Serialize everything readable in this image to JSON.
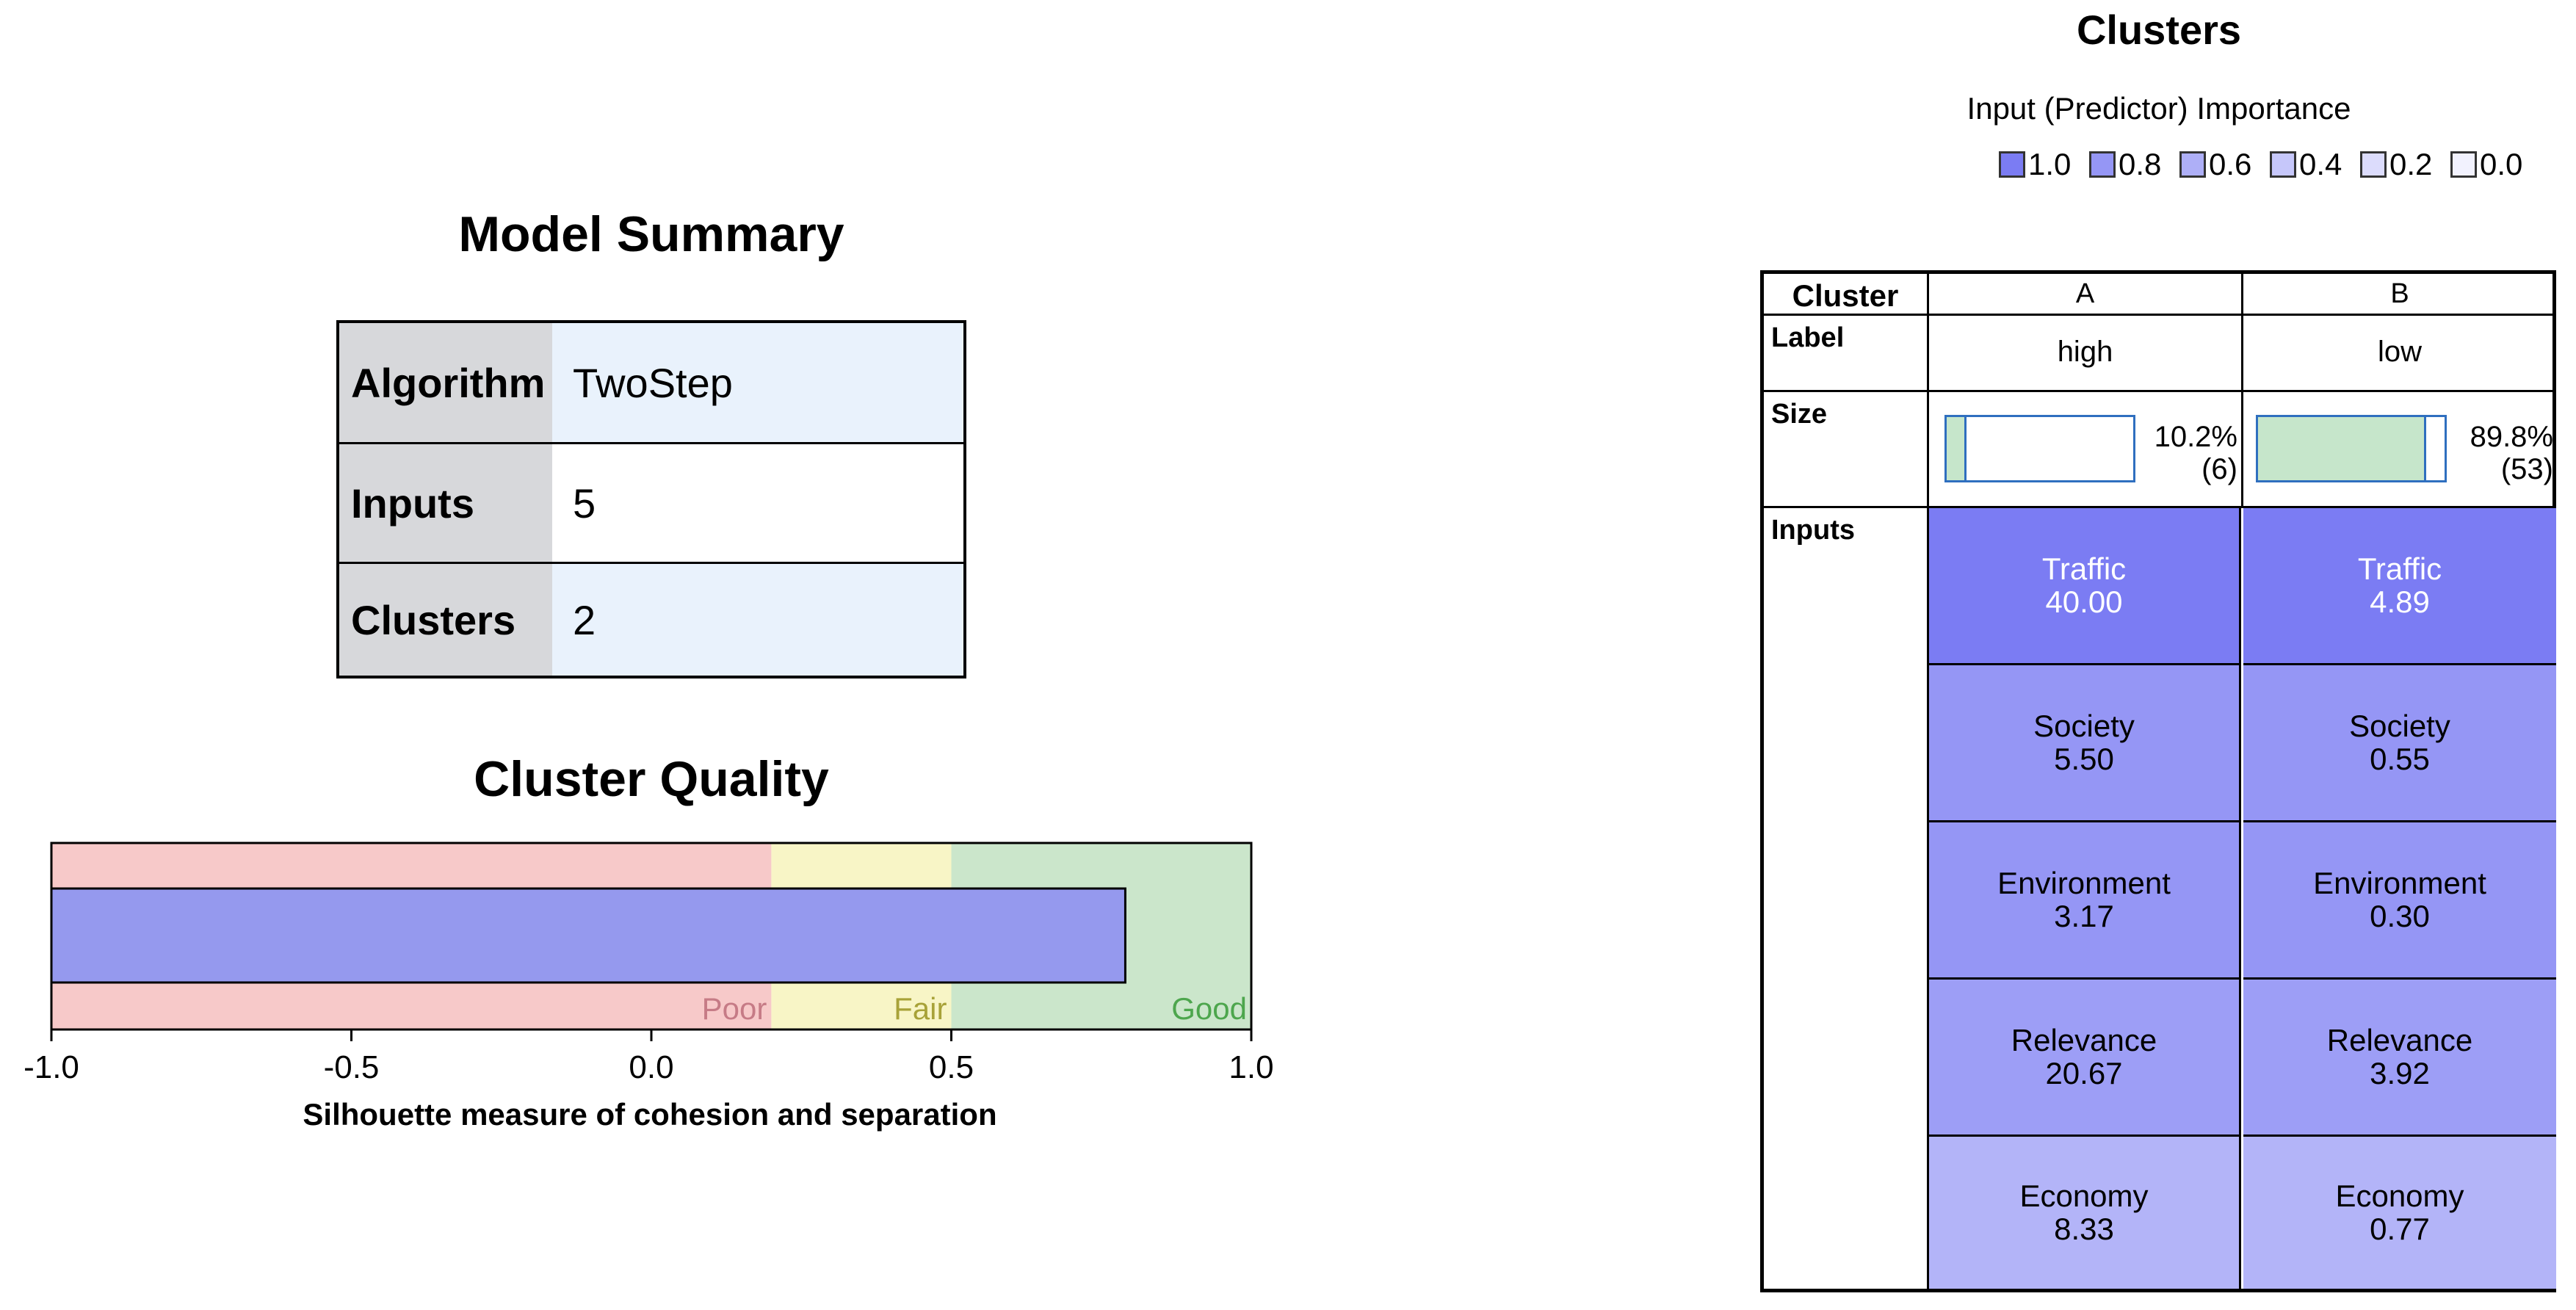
{
  "model_summary": {
    "title": "Model Summary",
    "rows": [
      {
        "label": "Algorithm",
        "value": "TwoStep"
      },
      {
        "label": "Inputs",
        "value": "5"
      },
      {
        "label": "Clusters",
        "value": "2"
      }
    ]
  },
  "cluster_quality": {
    "title": "Cluster Quality",
    "xlabel": "Silhouette measure of cohesion and separation",
    "ticks": [
      "-1.0",
      "-0.5",
      "0.0",
      "0.5",
      "1.0"
    ],
    "zones": [
      {
        "label": "Poor",
        "from": -1.0,
        "to": 0.2,
        "color": "#f7c9c9",
        "text_color": "#c67b86"
      },
      {
        "label": "Fair",
        "from": 0.2,
        "to": 0.5,
        "color": "#f8f5c6",
        "text_color": "#a8a238"
      },
      {
        "label": "Good",
        "from": 0.5,
        "to": 1.0,
        "color": "#cbe6cb",
        "text_color": "#4da64d"
      }
    ],
    "bar_color": "#9599ee"
  },
  "clusters": {
    "title": "Clusters",
    "legend_title": "Input (Predictor) Importance",
    "legend": [
      {
        "label": "1.0",
        "color": "#7b7cf3"
      },
      {
        "label": "0.8",
        "color": "#9596f5"
      },
      {
        "label": "0.6",
        "color": "#aeaff7"
      },
      {
        "label": "0.4",
        "color": "#c6c7fa"
      },
      {
        "label": "0.2",
        "color": "#dcdcfc"
      },
      {
        "label": "0.0",
        "color": "#f2f2fe"
      }
    ],
    "row_labels": {
      "cluster": "Cluster",
      "label": "Label",
      "size": "Size",
      "inputs": "Inputs"
    },
    "columns": [
      {
        "name": "A",
        "label": "high",
        "size_pct": "10.2%",
        "size_n": "(6)",
        "size_fraction": 0.102,
        "inputs": [
          {
            "name": "Traffic",
            "value": "40.00",
            "color": "#7b7cf3",
            "text_color": "#ffffff"
          },
          {
            "name": "Society",
            "value": "5.50",
            "color": "#9596f5",
            "text_color": "#000000"
          },
          {
            "name": "Environment",
            "value": "3.17",
            "color": "#9596f5",
            "text_color": "#000000"
          },
          {
            "name": "Relevance",
            "value": "20.67",
            "color": "#9d9ef6",
            "text_color": "#000000"
          },
          {
            "name": "Economy",
            "value": "8.33",
            "color": "#b3b4f8",
            "text_color": "#000000"
          }
        ]
      },
      {
        "name": "B",
        "label": "low",
        "size_pct": "89.8%",
        "size_n": "(53)",
        "size_fraction": 0.898,
        "inputs": [
          {
            "name": "Traffic",
            "value": "4.89",
            "color": "#7b7cf3",
            "text_color": "#ffffff"
          },
          {
            "name": "Society",
            "value": "0.55",
            "color": "#9596f5",
            "text_color": "#000000"
          },
          {
            "name": "Environment",
            "value": "0.30",
            "color": "#9596f5",
            "text_color": "#000000"
          },
          {
            "name": "Relevance",
            "value": "3.92",
            "color": "#9d9ef6",
            "text_color": "#000000"
          },
          {
            "name": "Economy",
            "value": "0.77",
            "color": "#b3b4f8",
            "text_color": "#000000"
          }
        ]
      }
    ]
  },
  "chart_data": [
    {
      "type": "bar",
      "title": "Cluster Quality",
      "xlabel": "Silhouette measure of cohesion and separation",
      "ylabel": "",
      "xlim": [
        -1.0,
        1.0
      ],
      "categories": [
        "Silhouette"
      ],
      "values": [
        0.79
      ],
      "orientation": "horizontal"
    },
    {
      "type": "table",
      "title": "Clusters",
      "columns": [
        "Cluster",
        "A",
        "B"
      ],
      "rows": [
        [
          "Label",
          "high",
          "low"
        ],
        [
          "Size",
          "10.2% (6)",
          "89.8% (53)"
        ],
        [
          "Traffic",
          "40.00",
          "4.89"
        ],
        [
          "Society",
          "5.50",
          "0.55"
        ],
        [
          "Environment",
          "3.17",
          "0.30"
        ],
        [
          "Relevance",
          "20.67",
          "3.92"
        ],
        [
          "Economy",
          "8.33",
          "0.77"
        ]
      ]
    }
  ]
}
